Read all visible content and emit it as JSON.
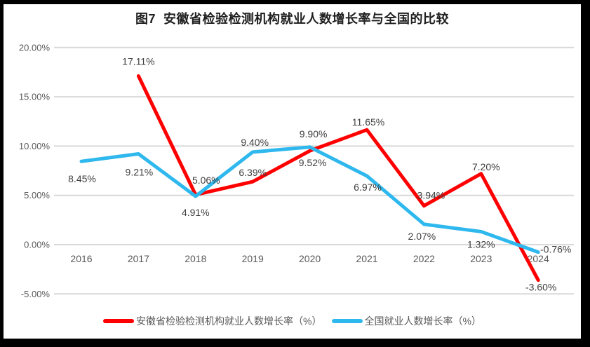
{
  "frame": {
    "border_color": "#000000",
    "background": "#ffffff"
  },
  "colors": {
    "anhui_line": "#fe0000",
    "national_line": "#2eb8ee",
    "gridline": "#d9d9d9",
    "axis_text": "#595959",
    "data_label_text": "#404040",
    "title_text": "#1f1f1f",
    "legend_text": "#595959"
  },
  "chart_data": {
    "type": "line",
    "title": "图7  安徽省检验检测机构就业人数增长率与全国的比较",
    "categories": [
      "2016",
      "2017",
      "2018",
      "2019",
      "2020",
      "2021",
      "2022",
      "2023",
      "2024"
    ],
    "ylim": [
      -5,
      20
    ],
    "grid": true,
    "legend_position": "bottom",
    "y_ticks": [
      {
        "value": 20,
        "label": "20.00%"
      },
      {
        "value": 15,
        "label": "15.00%"
      },
      {
        "value": 10,
        "label": "10.00%"
      },
      {
        "value": 5,
        "label": "5.00%"
      },
      {
        "value": 0,
        "label": "0.00%"
      },
      {
        "value": -5,
        "label": "-5.00%"
      }
    ],
    "series": [
      {
        "name": "安徽省检验检测机构就业人数增长率（%）",
        "color": "#fe0000",
        "values": [
          null,
          17.11,
          5.06,
          6.39,
          9.52,
          11.65,
          3.94,
          7.2,
          -3.6
        ],
        "labels": [
          null,
          {
            "text": "17.11%",
            "dx": 0,
            "dy": -21
          },
          {
            "text": "5.06%",
            "dx": 15,
            "dy": -21
          },
          {
            "text": "6.39%",
            "dx": 0,
            "dy": -13
          },
          {
            "text": "9.52%",
            "dx": 4,
            "dy": 17
          },
          {
            "text": "11.65%",
            "dx": 2,
            "dy": -11
          },
          {
            "text": "3.94%",
            "dx": 10,
            "dy": -15
          },
          {
            "text": "7.20%",
            "dx": 7,
            "dy": -10
          },
          {
            "text": "-3.60%",
            "dx": 4,
            "dy": 10
          }
        ]
      },
      {
        "name": "全国就业人数增长率（%）",
        "color": "#2eb8ee",
        "values": [
          8.45,
          9.21,
          4.91,
          9.4,
          9.9,
          6.97,
          2.07,
          1.32,
          -0.76
        ],
        "labels": [
          {
            "text": "8.45%",
            "dx": 1,
            "dy": 25
          },
          {
            "text": "9.21%",
            "dx": 1,
            "dy": 26
          },
          {
            "text": "4.91%",
            "dx": 0,
            "dy": 23
          },
          {
            "text": "9.40%",
            "dx": 3,
            "dy": -14
          },
          {
            "text": "9.90%",
            "dx": 5,
            "dy": -19
          },
          {
            "text": "6.97%",
            "dx": 1,
            "dy": 16
          },
          {
            "text": "2.07%",
            "dx": -3,
            "dy": 17
          },
          {
            "text": "1.32%",
            "dx": 0,
            "dy": 18
          },
          {
            "text": "-0.76%",
            "dx": 25,
            "dy": -4
          }
        ]
      }
    ]
  }
}
